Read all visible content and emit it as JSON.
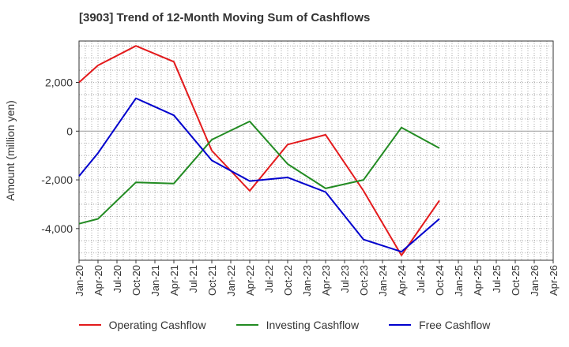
{
  "title": "[3903]  Trend of 12-Month Moving Sum of Cashflows",
  "chart_data": {
    "type": "line",
    "title": "[3903]  Trend of 12-Month Moving Sum of Cashflows",
    "xlabel": "",
    "ylabel": "Amount (million yen)",
    "categories": [
      "Jan-20",
      "Apr-20",
      "Jul-20",
      "Oct-20",
      "Jan-21",
      "Apr-21",
      "Jul-21",
      "Oct-21",
      "Jan-22",
      "Apr-22",
      "Jul-22",
      "Oct-22",
      "Jan-23",
      "Apr-23",
      "Jul-23",
      "Oct-23",
      "Jan-24",
      "Apr-24",
      "Jul-24",
      "Oct-24",
      "Jan-25",
      "Apr-25",
      "Jul-25",
      "Oct-25",
      "Jan-26",
      "Apr-26"
    ],
    "y_ticks": [
      2000,
      0,
      -2000,
      -4000
    ],
    "y_tick_labels": [
      "2,000",
      "0",
      "-2,000",
      "-4,000"
    ],
    "ylim": [
      -5300,
      3700
    ],
    "grid": true,
    "legend_position": "bottom",
    "series": [
      {
        "name": "Operating Cashflow",
        "color": "#e31a1c",
        "points": [
          {
            "x": "Jan-20",
            "y": 2000
          },
          {
            "x": "Apr-20",
            "y": 2700
          },
          {
            "x": "Oct-20",
            "y": 3500
          },
          {
            "x": "Apr-21",
            "y": 2850
          },
          {
            "x": "Oct-21",
            "y": -800
          },
          {
            "x": "Apr-22",
            "y": -2450
          },
          {
            "x": "Oct-22",
            "y": -550
          },
          {
            "x": "Apr-23",
            "y": -150
          },
          {
            "x": "Oct-23",
            "y": -2450
          },
          {
            "x": "Apr-24",
            "y": -5100
          },
          {
            "x": "Oct-24",
            "y": -2850
          }
        ]
      },
      {
        "name": "Investing Cashflow",
        "color": "#228b22",
        "points": [
          {
            "x": "Jan-20",
            "y": -3800
          },
          {
            "x": "Apr-20",
            "y": -3600
          },
          {
            "x": "Oct-20",
            "y": -2100
          },
          {
            "x": "Apr-21",
            "y": -2150
          },
          {
            "x": "Oct-21",
            "y": -350
          },
          {
            "x": "Apr-22",
            "y": 400
          },
          {
            "x": "Oct-22",
            "y": -1350
          },
          {
            "x": "Apr-23",
            "y": -2350
          },
          {
            "x": "Oct-23",
            "y": -2000
          },
          {
            "x": "Apr-24",
            "y": 150
          },
          {
            "x": "Oct-24",
            "y": -700
          }
        ]
      },
      {
        "name": "Free Cashflow",
        "color": "#0000cd",
        "points": [
          {
            "x": "Jan-20",
            "y": -1850
          },
          {
            "x": "Apr-20",
            "y": -900
          },
          {
            "x": "Oct-20",
            "y": 1350
          },
          {
            "x": "Apr-21",
            "y": 650
          },
          {
            "x": "Oct-21",
            "y": -1200
          },
          {
            "x": "Apr-22",
            "y": -2050
          },
          {
            "x": "Oct-22",
            "y": -1900
          },
          {
            "x": "Apr-23",
            "y": -2500
          },
          {
            "x": "Oct-23",
            "y": -4450
          },
          {
            "x": "Apr-24",
            "y": -4950
          },
          {
            "x": "Oct-24",
            "y": -3600
          }
        ]
      }
    ]
  }
}
